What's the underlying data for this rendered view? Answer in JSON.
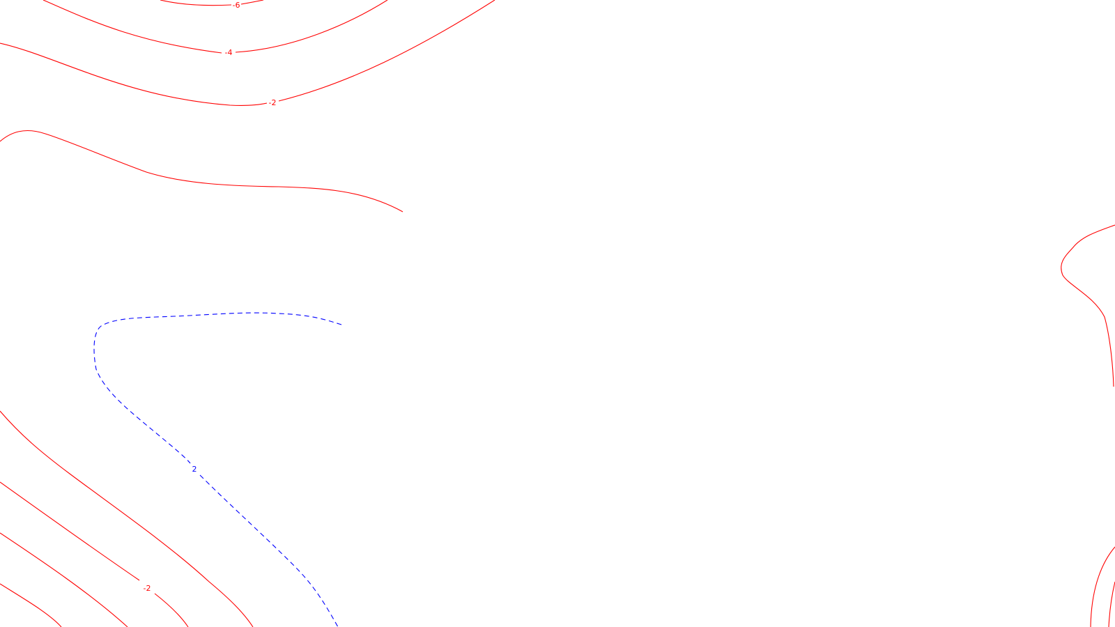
{
  "map": {
    "background": "#ffffff",
    "colors": {
      "negative": "#ff0000",
      "positive": "#0000ff"
    },
    "contour_labels": {
      "top_minus6": "-6",
      "top_minus4": "-4",
      "top_minus2": "-2",
      "positive_2": "2",
      "bottom_minus2": "-2"
    }
  }
}
